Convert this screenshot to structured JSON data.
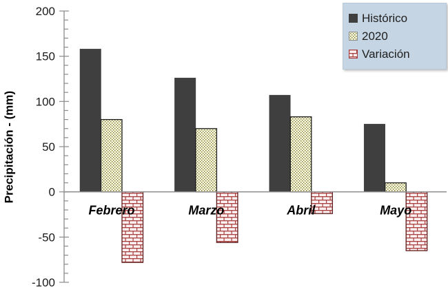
{
  "chart_data": {
    "type": "bar",
    "title": "",
    "categories": [
      "Febrero",
      "Marzo",
      "Abril",
      "Mayo"
    ],
    "series": [
      {
        "name": "Histórico",
        "values": [
          158,
          126,
          107,
          75
        ],
        "fill": "#3F3F3F",
        "pattern": "solid",
        "border": "#3F3F3F"
      },
      {
        "name": "2020",
        "values": [
          80,
          70,
          83,
          10
        ],
        "fill": "#F8F8DC",
        "pattern": "dotted-diamond",
        "pattern_color": "#73732D",
        "border": "#1f1f1f"
      },
      {
        "name": "Variación",
        "values": [
          -78,
          -56,
          -24,
          -65
        ],
        "fill": "#FBEFEF",
        "pattern": "brick",
        "pattern_color": "#A73C3C",
        "border": "#5E1A1A"
      }
    ],
    "xlabel": "",
    "ylabel": "Precipitación - (mm)",
    "ylim": [
      -100,
      200
    ],
    "y_major_step": 50,
    "y_minor_step": 10,
    "y_tick_labels": [
      "200",
      "150",
      "100",
      "50",
      "0",
      "-50",
      "-100"
    ],
    "grid": "off",
    "axis_color": "#8a8a8a",
    "zero_line_color": "#8a8a8a",
    "category_label_style": "bold-italic",
    "legend": {
      "position": "top-right",
      "background": "#C6D5E4",
      "items": [
        "Histórico",
        "2020",
        "Variación"
      ]
    }
  }
}
